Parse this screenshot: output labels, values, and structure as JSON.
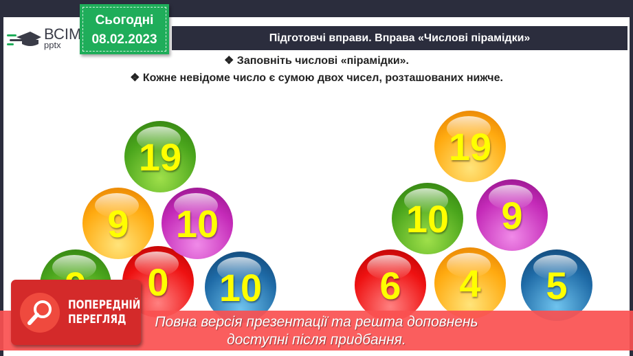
{
  "logo": {
    "name": "ВСІМ",
    "sub": "pptx"
  },
  "date_badge": {
    "label": "Сьогодні",
    "date": "08.02.2023"
  },
  "title": "Підготовчі вправи. Вправа «Числові пірамідки»",
  "bullets": [
    "Заповніть числові «пірамідки».",
    "Кожне невідоме число є сумою двох чисел, розташованих нижче."
  ],
  "pyramid_left": {
    "top": "19",
    "middle": [
      "9",
      "10"
    ],
    "bottom": [
      "9",
      "0",
      "10"
    ]
  },
  "pyramid_right": {
    "top": "19",
    "middle": [
      "10",
      "9"
    ],
    "bottom": [
      "6",
      "4",
      "5"
    ]
  },
  "preview_badge": {
    "line1": "ПОПЕРЕДНІЙ",
    "line2": "ПЕРЕГЛЯД"
  },
  "banner": {
    "line1": "Повна версія презентації та решта доповнень",
    "line2": "доступні після придбання."
  },
  "colors": {
    "frame": "#2b2d3d",
    "date_green": "#1fad5a",
    "banner_red": "#fa5050",
    "number_yellow": "#ffff00"
  }
}
